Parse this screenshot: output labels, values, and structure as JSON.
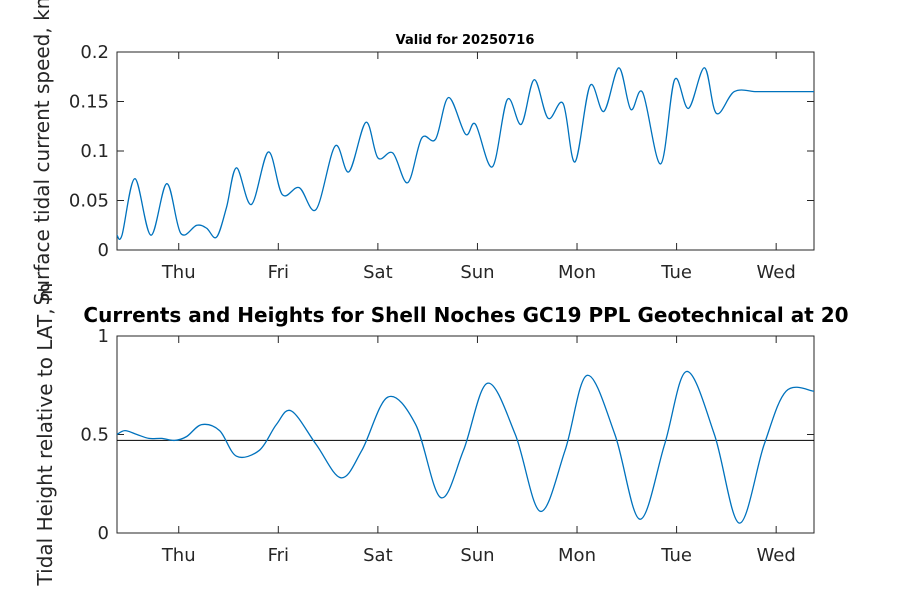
{
  "chart_data": [
    {
      "type": "line",
      "title": "Valid for 20250716",
      "ylabel": "Surface tidal current speed, kn",
      "xlabel": "",
      "ylim": [
        0,
        0.2
      ],
      "yticks": [
        "0",
        "0.05",
        "0.1",
        "0.15",
        "0.2"
      ],
      "xlim": [
        0,
        7.0
      ],
      "xticks": [
        {
          "x": 0.62,
          "label": "Thu"
        },
        {
          "x": 1.62,
          "label": "Fri"
        },
        {
          "x": 2.62,
          "label": "Sat"
        },
        {
          "x": 3.62,
          "label": "Sun"
        },
        {
          "x": 4.62,
          "label": "Mon"
        },
        {
          "x": 5.62,
          "label": "Tue"
        },
        {
          "x": 6.62,
          "label": "Wed"
        }
      ],
      "grid": false,
      "series": [
        {
          "color": "#0072BD",
          "x": [
            0.0,
            0.05,
            0.18,
            0.34,
            0.5,
            0.64,
            0.8,
            0.9,
            1.0,
            1.1,
            1.2,
            1.35,
            1.52,
            1.66,
            1.83,
            2.0,
            2.19,
            2.33,
            2.5,
            2.62,
            2.77,
            2.92,
            3.06,
            3.2,
            3.33,
            3.5,
            3.6,
            3.77,
            3.92,
            4.06,
            4.19,
            4.33,
            4.48,
            4.6,
            4.75,
            4.89,
            5.04,
            5.16,
            5.28,
            5.46,
            5.6,
            5.74,
            5.9,
            6.02,
            6.2,
            6.42,
            6.6,
            6.74,
            6.88,
            7.0
          ],
          "y": [
            0.015,
            0.015,
            0.072,
            0.015,
            0.067,
            0.017,
            0.025,
            0.022,
            0.013,
            0.043,
            0.083,
            0.046,
            0.099,
            0.056,
            0.063,
            0.041,
            0.105,
            0.079,
            0.129,
            0.093,
            0.098,
            0.068,
            0.113,
            0.112,
            0.154,
            0.117,
            0.127,
            0.084,
            0.152,
            0.127,
            0.172,
            0.133,
            0.148,
            0.089,
            0.166,
            0.14,
            0.184,
            0.142,
            0.159,
            0.087,
            0.172,
            0.143,
            0.184,
            0.138,
            0.16,
            0.16,
            0.16,
            0.16,
            0.16,
            0.16
          ]
        }
      ]
    },
    {
      "type": "line",
      "title": "Currents and Heights for Shell Noches   GC19 PPL  Geotechnical at 20",
      "ylabel": "Tidal Height relative to LAT, m",
      "xlabel": "",
      "ylim": [
        0,
        1
      ],
      "yticks": [
        "0",
        "0.5",
        "1"
      ],
      "xlim": [
        0,
        7.0
      ],
      "xticks": [
        {
          "x": 0.62,
          "label": "Thu"
        },
        {
          "x": 1.62,
          "label": "Fri"
        },
        {
          "x": 2.62,
          "label": "Sat"
        },
        {
          "x": 3.62,
          "label": "Sun"
        },
        {
          "x": 4.62,
          "label": "Mon"
        },
        {
          "x": 5.62,
          "label": "Tue"
        },
        {
          "x": 6.62,
          "label": "Wed"
        }
      ],
      "grid": false,
      "reference_line": 0.47,
      "series": [
        {
          "color": "#0072BD",
          "x": [
            0.0,
            0.08,
            0.2,
            0.32,
            0.45,
            0.58,
            0.7,
            0.85,
            1.03,
            1.2,
            1.43,
            1.6,
            1.75,
            2.0,
            2.25,
            2.46,
            2.72,
            3.0,
            3.25,
            3.48,
            3.72,
            4.0,
            4.25,
            4.5,
            4.72,
            5.0,
            5.25,
            5.5,
            5.72,
            6.0,
            6.25,
            6.5,
            6.72,
            7.0
          ],
          "y": [
            0.5,
            0.52,
            0.5,
            0.48,
            0.48,
            0.47,
            0.49,
            0.55,
            0.52,
            0.39,
            0.42,
            0.55,
            0.62,
            0.45,
            0.28,
            0.42,
            0.69,
            0.55,
            0.18,
            0.42,
            0.76,
            0.5,
            0.11,
            0.42,
            0.8,
            0.5,
            0.07,
            0.45,
            0.82,
            0.5,
            0.05,
            0.45,
            0.72,
            0.72
          ]
        }
      ]
    }
  ]
}
